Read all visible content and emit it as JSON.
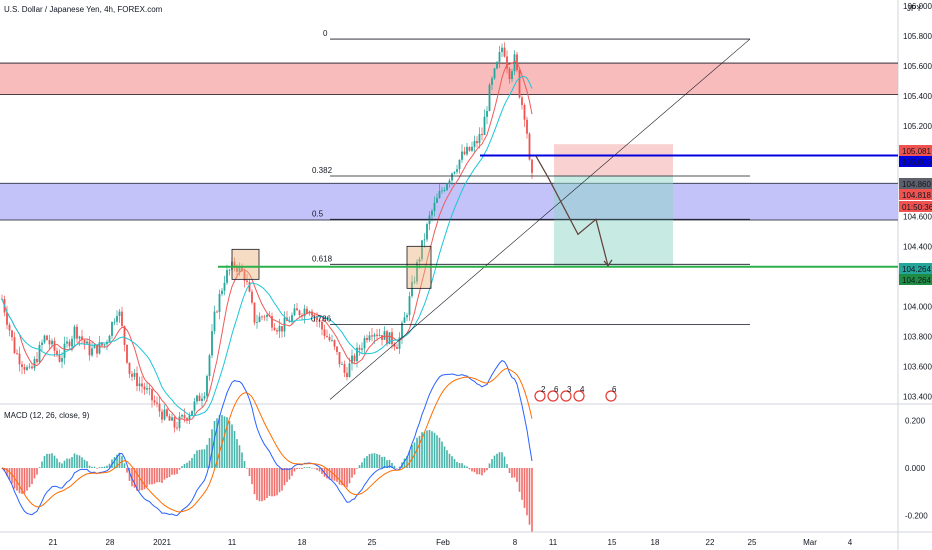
{
  "chart_data": {
    "type": "candlestick",
    "title": "U.S. Dollar / Japanese Yen, 4h, FOREX.com",
    "currency": "JPY",
    "price_axis": {
      "ticks": [
        "106.000",
        "105.800",
        "105.600",
        "105.400",
        "105.200",
        "104.600",
        "104.400",
        "104.000",
        "103.800",
        "103.600",
        "103.400"
      ],
      "range": [
        103.35,
        106.04
      ]
    },
    "time_axis": {
      "ticks": [
        "21",
        "28",
        "2021",
        "11",
        "18",
        "25",
        "Feb",
        "8",
        "11",
        "15",
        "18",
        "22",
        "25",
        "Mar",
        "4"
      ]
    },
    "price_labels": [
      {
        "text": "105.081",
        "bg": "#ef5350"
      },
      {
        "text": "105.005",
        "bg": "#0000e0"
      },
      {
        "text": "104.860",
        "bg": "#5d606b"
      },
      {
        "text": "104.818",
        "bg": "#ef5350"
      },
      {
        "text": "01:50:36",
        "bg": "#ef5350"
      },
      {
        "text": "104.264",
        "bg": "#26a69a"
      },
      {
        "text": "104.264",
        "bg": "#1e8c42"
      }
    ],
    "fibonacci": [
      {
        "level": "0",
        "price": 105.78
      },
      {
        "level": "0.382",
        "price": 104.868
      },
      {
        "level": "0.5",
        "price": 104.58
      },
      {
        "level": "0.618",
        "price": 104.28
      },
      {
        "level": "0.786",
        "price": 103.88
      }
    ],
    "zones": [
      {
        "name": "resistance",
        "top": 105.62,
        "bottom": 105.41,
        "color": "#f7b0b0"
      },
      {
        "name": "support",
        "top": 104.82,
        "bottom": 104.575,
        "color": "#b8b8f8"
      }
    ],
    "horizontal_lines": [
      {
        "price": 105.005,
        "color": "#0000e0"
      },
      {
        "price": 104.264,
        "color": "#2bb04a"
      }
    ],
    "forecast_path": [
      105.0,
      104.86,
      104.48,
      104.58,
      104.27
    ],
    "position": {
      "entry": 104.87,
      "stop": 105.08,
      "target": 104.264
    },
    "macd": {
      "label": "MACD (12, 26, close, 9)",
      "ticks": [
        "0.200",
        "0.000",
        "-0.200"
      ],
      "range": [
        -0.27,
        0.27
      ]
    },
    "event_markers": [
      "2",
      "6",
      "3",
      "4",
      "6"
    ]
  }
}
